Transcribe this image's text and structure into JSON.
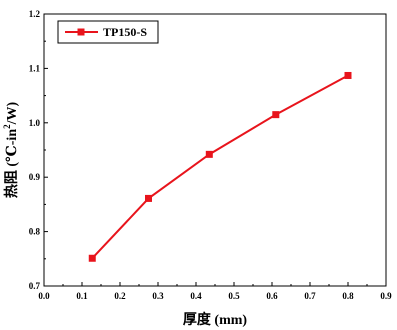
{
  "chart_data": {
    "type": "line",
    "title": "",
    "xlabel": "厚度 (mm)",
    "ylabel_main": "热阻 (℃-in",
    "ylabel_sup": "2",
    "ylabel_tail": "/W)",
    "xlim": [
      0.0,
      0.9
    ],
    "ylim": [
      0.7,
      1.2
    ],
    "x_ticks": [
      "0.0",
      "0.1",
      "0.2",
      "0.3",
      "0.4",
      "0.5",
      "0.6",
      "0.7",
      "0.8",
      "0.9"
    ],
    "y_ticks": [
      "0.7",
      "0.8",
      "0.9",
      "1.0",
      "1.1",
      "1.2"
    ],
    "grid": false,
    "legend_position": "top-left",
    "series": [
      {
        "name": "TP150-S",
        "color": "#e8141c",
        "marker": "square",
        "x": [
          0.127,
          0.275,
          0.435,
          0.61,
          0.8
        ],
        "y": [
          0.751,
          0.861,
          0.942,
          1.015,
          1.087
        ]
      }
    ]
  }
}
